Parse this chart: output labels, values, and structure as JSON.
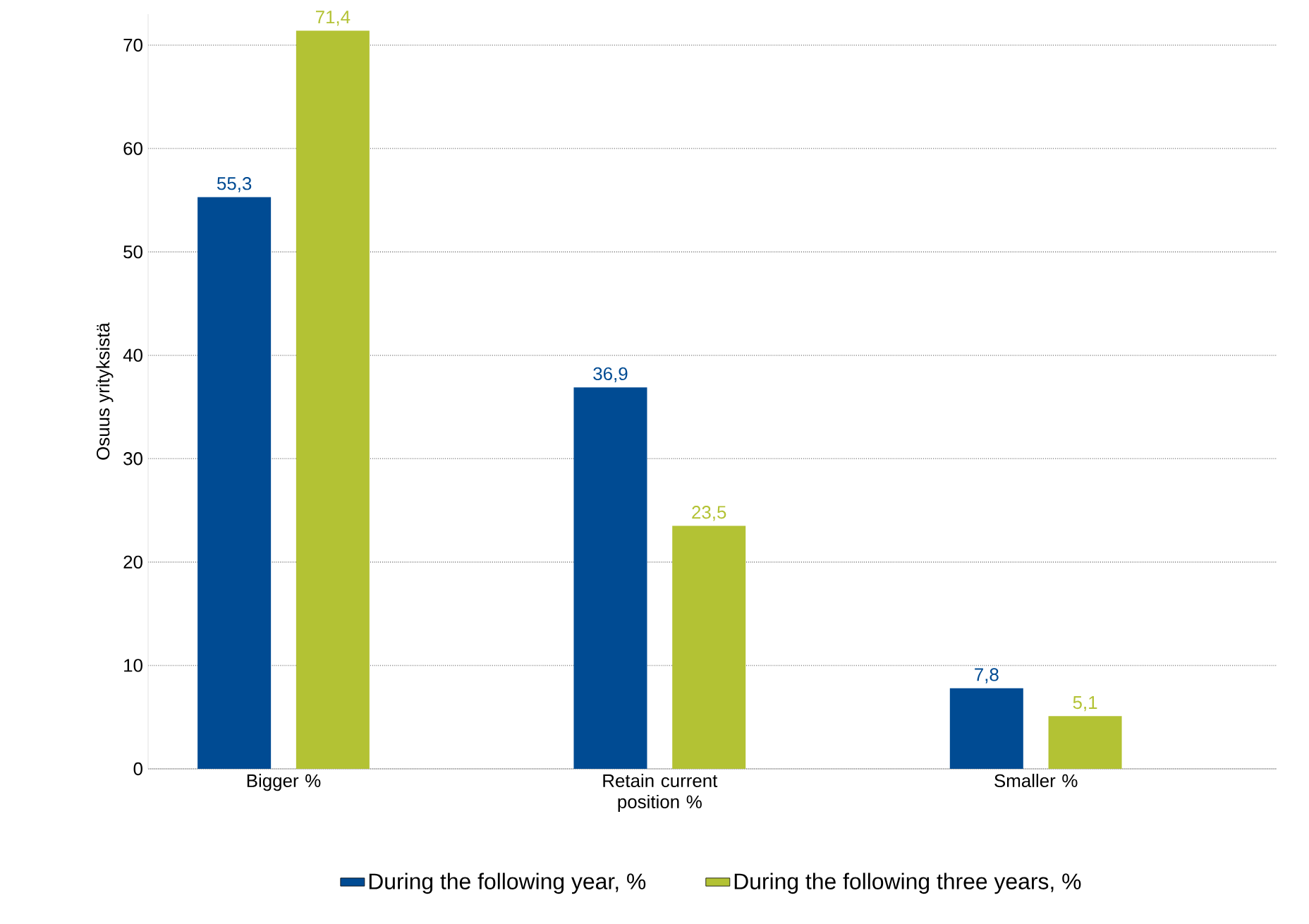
{
  "chart_data": {
    "type": "bar",
    "ylabel": "Osuus yrityksistä",
    "categories": [
      "Bigger %",
      "Retain current position %",
      "Smaller %"
    ],
    "series": [
      {
        "name": "During the following year, %",
        "color": "#004b93",
        "values": [
          55.3,
          36.9,
          7.8
        ],
        "value_labels": [
          "55,3",
          "36,9",
          "7,8"
        ]
      },
      {
        "name": "During the following three years, %",
        "color": "#b3c234",
        "values": [
          71.4,
          23.5,
          5.1
        ],
        "value_labels": [
          "71,4",
          "23,5",
          "5,1"
        ]
      }
    ],
    "ylim": [
      0,
      73
    ],
    "yticks": [
      0,
      10,
      20,
      30,
      40,
      50,
      60,
      70
    ],
    "grid": "y",
    "legend": "bottom"
  }
}
